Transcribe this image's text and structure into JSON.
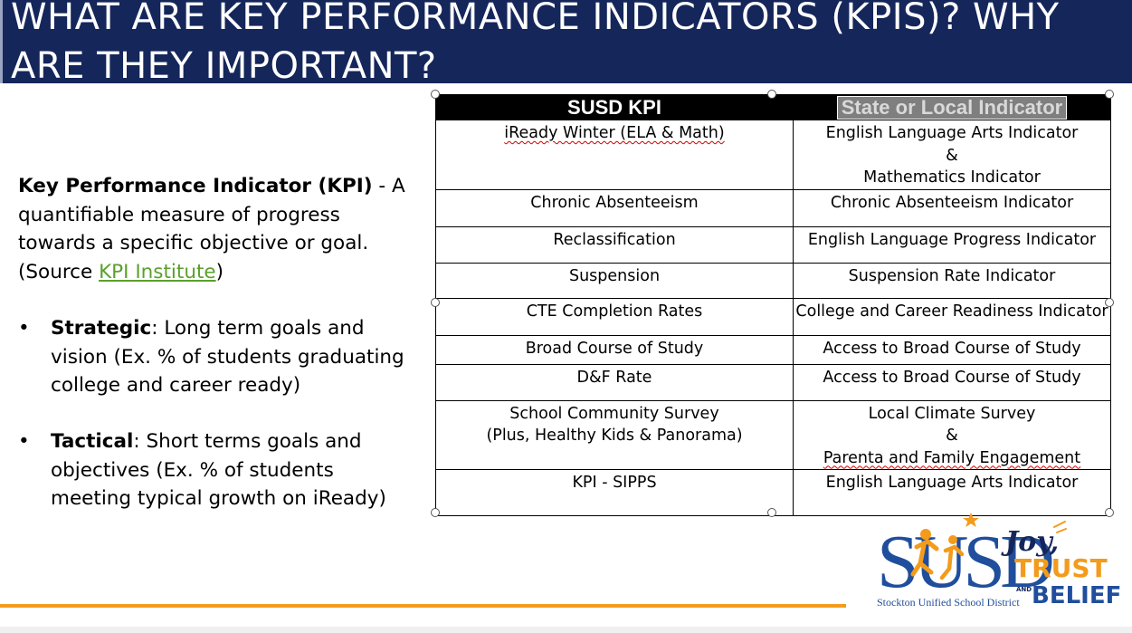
{
  "slide": {
    "title": "What are Key Performance Indicators (KPIs)? Why are they important?"
  },
  "definition": {
    "term": "Key Performance Indicator (KPI)",
    "dash": " -",
    "body": "A quantifiable measure of progress towards a specific objective or goal. (Source ",
    "link_text": "KPI Institute",
    "close": ")"
  },
  "bullets": [
    {
      "marker": "•",
      "head": "Strategic",
      "text": ": Long term goals and vision (Ex. % of students graduating college and career ready)"
    },
    {
      "marker": "•",
      "head": "Tactical",
      "text": ": Short terms goals and objectives (Ex. % of students meeting typical growth on iReady)"
    }
  ],
  "table": {
    "headers": [
      "SUSD KPI",
      "State or Local Indicator"
    ],
    "rows": [
      {
        "kpi": [
          "iReady Winter (ELA & Math)"
        ],
        "indicator": [
          "English Language Arts Indicator",
          "&",
          "Mathematics Indicator"
        ]
      },
      {
        "kpi": [
          "Chronic Absenteeism"
        ],
        "indicator": [
          "Chronic Absenteeism Indicator"
        ]
      },
      {
        "kpi": [
          "Reclassification"
        ],
        "indicator": [
          "English Language Progress Indicator"
        ]
      },
      {
        "kpi": [
          "Suspension"
        ],
        "indicator": [
          "Suspension Rate Indicator"
        ]
      },
      {
        "kpi": [
          "CTE Completion Rates"
        ],
        "indicator": [
          "College and Career Readiness Indicator"
        ]
      },
      {
        "kpi": [
          "Broad Course of Study"
        ],
        "indicator": [
          "Access to Broad Course of Study"
        ]
      },
      {
        "kpi": [
          "D&F Rate"
        ],
        "indicator": [
          "Access to Broad Course of Study"
        ]
      },
      {
        "kpi": [
          "School Community Survey",
          "(Plus, Healthy Kids & Panorama)"
        ],
        "indicator": [
          "Local Climate Survey",
          "&",
          "Parenta and Family Engagement"
        ]
      },
      {
        "kpi": [
          "KPI - SIPPS"
        ],
        "indicator": [
          "English Language Arts Indicator"
        ]
      }
    ]
  },
  "logo": {
    "district_letters": "SUSD",
    "district_name": "Stockton Unified School District",
    "motto_joy": "Joy,",
    "motto_trust": "TRUST",
    "motto_and": "AND",
    "motto_belief": "BELIEF",
    "colors": {
      "blue": "#1f4e9c",
      "orange": "#f39b1c",
      "navy": "#15265a",
      "accent_line": "#f39b1c"
    }
  }
}
